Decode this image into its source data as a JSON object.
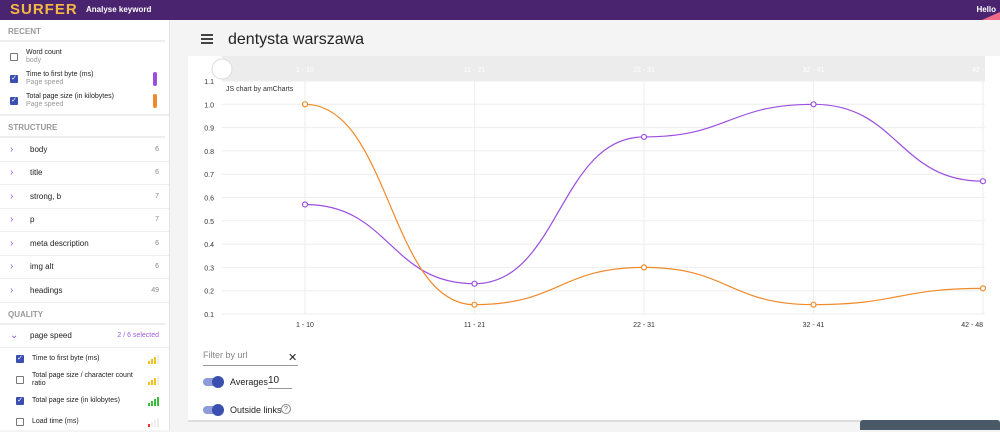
{
  "header": {
    "logo": "SURFER",
    "nav": "Analyse keyword",
    "greeting": "Hello"
  },
  "sidebar": {
    "recent_title": "RECENT",
    "recent": [
      {
        "label": "Word count",
        "sub": "body",
        "checked": false,
        "color": null
      },
      {
        "label": "Time to first byte (ms)",
        "sub": "Page speed",
        "checked": true,
        "color": "#9b4fe0"
      },
      {
        "label": "Total page size (in kilobytes)",
        "sub": "Page speed",
        "checked": true,
        "color": "#f08a2a"
      }
    ],
    "structure_title": "STRUCTURE",
    "structure": [
      {
        "label": "body",
        "count": "6"
      },
      {
        "label": "title",
        "count": "6"
      },
      {
        "label": "strong, b",
        "count": "7"
      },
      {
        "label": "p",
        "count": "7"
      },
      {
        "label": "meta description",
        "count": "6"
      },
      {
        "label": "img alt",
        "count": "6"
      },
      {
        "label": "headings",
        "count": "49"
      }
    ],
    "quality_title": "QUALITY",
    "group": {
      "label": "page speed",
      "selected": "2 / 6 selected"
    },
    "quality": [
      {
        "label": "Time to first byte (ms)",
        "checked": true,
        "signal": 3,
        "color": "#f2c21b"
      },
      {
        "label": "Total page size / character count ratio",
        "checked": false,
        "signal": 3,
        "color": "#f2c21b"
      },
      {
        "label": "Total page size (in kilobytes)",
        "checked": true,
        "signal": 4,
        "color": "#3bbf3b"
      },
      {
        "label": "Load time (ms)",
        "checked": false,
        "signal": 1,
        "color": "#e33"
      }
    ]
  },
  "main": {
    "title": "dentysta warszawa",
    "filter_placeholder": "Filter by url",
    "averages_label": "Averages",
    "averages_value": "10",
    "outside_links_label": "Outside links",
    "help": "?",
    "clear": "✕"
  },
  "chart_data": {
    "type": "line",
    "credit": "JS chart by amCharts",
    "categories": [
      "1 - 10",
      "11 - 21",
      "22 - 31",
      "32 - 41",
      "42 - 48"
    ],
    "ylim": [
      0.1,
      1.1
    ],
    "yticks": [
      "1.1",
      "1.0",
      "0.9",
      "0.8",
      "0.7",
      "0.6",
      "0.5",
      "0.4",
      "0.3",
      "0.2",
      "0.1"
    ],
    "series": [
      {
        "name": "Time to first byte (ms)",
        "color": "#9b4fe0",
        "values": [
          0.57,
          0.23,
          0.86,
          1.0,
          0.67
        ]
      },
      {
        "name": "Total page size (in kilobytes)",
        "color": "#f08a2a",
        "values": [
          1.0,
          0.14,
          0.3,
          0.14,
          0.21
        ]
      }
    ]
  }
}
